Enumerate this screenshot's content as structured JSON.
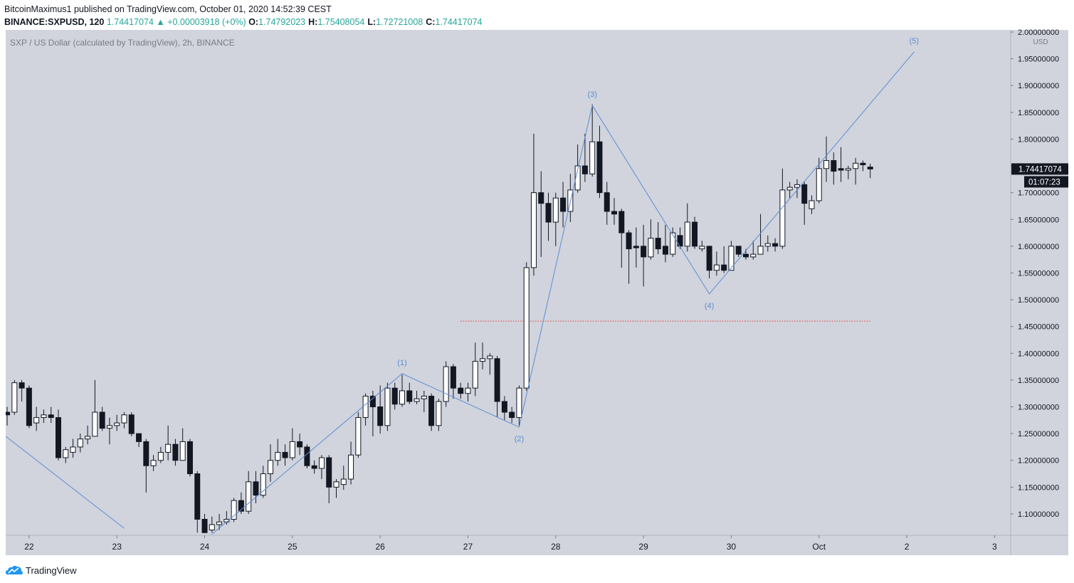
{
  "header": {
    "publisher_line": "BitcoinMaximus1 published on TradingView.com, October 01, 2020 14:52:39 CEST",
    "symbol": "BINANCE:SXPUSD, 120",
    "last": "1.74417074",
    "change": "▲ +0.00003918 (+0%)",
    "ohlc": [
      {
        "label": "O:",
        "value": "1.74792023"
      },
      {
        "label": "H:",
        "value": "1.75408054"
      },
      {
        "label": "L:",
        "value": "1.72721008"
      },
      {
        "label": "C:",
        "value": "1.74417074"
      }
    ]
  },
  "chart_data": {
    "type": "candlestick",
    "title": "SXP / US Dollar (calculated by TradingView), 2h, BINANCE",
    "currency": "USD",
    "background": "#d1d4dc",
    "up_color": "#ffffff",
    "down_color": "#131722",
    "outline_color": "#131722",
    "xlim": [
      -6.4,
      268.4
    ],
    "ylim": [
      1.0627,
      2.004
    ],
    "xticks": [
      {
        "value": 0,
        "label": "22"
      },
      {
        "value": 24,
        "label": "23"
      },
      {
        "value": 48,
        "label": "24"
      },
      {
        "value": 72,
        "label": "25"
      },
      {
        "value": 96,
        "label": "26"
      },
      {
        "value": 120,
        "label": "27"
      },
      {
        "value": 144,
        "label": "28"
      },
      {
        "value": 168,
        "label": "29"
      },
      {
        "value": 192,
        "label": "30"
      },
      {
        "value": 216,
        "label": "Oct"
      },
      {
        "value": 240,
        "label": "2"
      },
      {
        "value": 264,
        "label": "3"
      }
    ],
    "yticks": [
      {
        "value": 1.1,
        "label": "1.10000000"
      },
      {
        "value": 1.15,
        "label": "1.15000000"
      },
      {
        "value": 1.2,
        "label": "1.20000000"
      },
      {
        "value": 1.25,
        "label": "1.25000000"
      },
      {
        "value": 1.3,
        "label": "1.30000000"
      },
      {
        "value": 1.35,
        "label": "1.35000000"
      },
      {
        "value": 1.4,
        "label": "1.40000000"
      },
      {
        "value": 1.45,
        "label": "1.45000000"
      },
      {
        "value": 1.5,
        "label": "1.50000000"
      },
      {
        "value": 1.55,
        "label": "1.55000000"
      },
      {
        "value": 1.6,
        "label": "1.60000000"
      },
      {
        "value": 1.65,
        "label": "1.65000000"
      },
      {
        "value": 1.7,
        "label": "1.70000000"
      },
      {
        "value": 1.75,
        "label": "1.75000000"
      },
      {
        "value": 1.8,
        "label": "1.80000000"
      },
      {
        "value": 1.85,
        "label": "1.85000000"
      },
      {
        "value": 1.9,
        "label": "1.90000000"
      },
      {
        "value": 1.95,
        "label": "1.95000000"
      },
      {
        "value": 2.0,
        "label": "2.00000000"
      }
    ],
    "x": [
      -6,
      -4,
      -2,
      0,
      2,
      4,
      6,
      8,
      10,
      12,
      14,
      16,
      18,
      20,
      22,
      24,
      26,
      28,
      30,
      32,
      34,
      36,
      38,
      40,
      42,
      44,
      46,
      48,
      50,
      52,
      54,
      56,
      58,
      60,
      62,
      64,
      66,
      68,
      70,
      72,
      74,
      76,
      78,
      80,
      82,
      84,
      86,
      88,
      90,
      92,
      94,
      96,
      98,
      100,
      102,
      104,
      106,
      108,
      110,
      112,
      114,
      116,
      118,
      120,
      122,
      124,
      126,
      128,
      130,
      132,
      134,
      136,
      138,
      140,
      142,
      144,
      146,
      148,
      150,
      152,
      154,
      156,
      158,
      160,
      162,
      164,
      166,
      168,
      170,
      172,
      174,
      176,
      178,
      180,
      182,
      184,
      186,
      188,
      190,
      192,
      194,
      196,
      198,
      200,
      202,
      204,
      206,
      208,
      210,
      212,
      214,
      216,
      218,
      220,
      222,
      224,
      226,
      228,
      230
    ],
    "open": [
      1.29,
      1.29,
      1.345,
      1.335,
      1.27,
      1.28,
      1.285,
      1.28,
      1.205,
      1.215,
      1.225,
      1.24,
      1.245,
      1.29,
      1.26,
      1.265,
      1.27,
      1.285,
      1.25,
      1.235,
      1.19,
      1.2,
      1.215,
      1.23,
      1.2,
      1.235,
      1.175,
      1.09,
      1.07,
      1.08,
      1.085,
      1.09,
      1.125,
      1.105,
      1.16,
      1.135,
      1.175,
      1.2,
      1.215,
      1.205,
      1.235,
      1.225,
      1.19,
      1.185,
      1.205,
      1.15,
      1.155,
      1.165,
      1.21,
      1.28,
      1.32,
      1.3,
      1.265,
      1.335,
      1.305,
      1.33,
      1.31,
      1.315,
      1.32,
      1.265,
      1.31,
      1.375,
      1.335,
      1.325,
      1.335,
      1.385,
      1.39,
      1.39,
      1.31,
      1.29,
      1.28,
      1.335,
      1.56,
      1.7,
      1.68,
      1.645,
      1.69,
      1.665,
      1.705,
      1.75,
      1.735,
      1.795,
      1.7,
      1.665,
      1.665,
      1.625,
      1.6,
      1.6,
      1.58,
      1.615,
      1.6,
      1.585,
      1.62,
      1.6,
      1.645,
      1.595,
      1.6,
      1.555,
      1.565,
      1.555,
      1.6,
      1.585,
      1.58,
      1.585,
      1.6,
      1.605,
      1.6,
      1.705,
      1.71,
      1.715,
      1.67,
      1.685,
      1.745,
      1.76,
      1.745,
      1.742,
      1.745,
      1.755,
      1.74792023
    ],
    "high": [
      1.3,
      1.35,
      1.35,
      1.34,
      1.3,
      1.295,
      1.3,
      1.295,
      1.225,
      1.24,
      1.25,
      1.265,
      1.35,
      1.3,
      1.28,
      1.285,
      1.29,
      1.29,
      1.25,
      1.24,
      1.21,
      1.225,
      1.265,
      1.24,
      1.26,
      1.24,
      1.18,
      1.1,
      1.095,
      1.1,
      1.105,
      1.13,
      1.14,
      1.18,
      1.18,
      1.19,
      1.23,
      1.24,
      1.23,
      1.26,
      1.25,
      1.23,
      1.2,
      1.21,
      1.21,
      1.165,
      1.19,
      1.235,
      1.29,
      1.325,
      1.33,
      1.34,
      1.345,
      1.345,
      1.36,
      1.345,
      1.33,
      1.33,
      1.325,
      1.315,
      1.385,
      1.38,
      1.345,
      1.345,
      1.42,
      1.42,
      1.4,
      1.395,
      1.32,
      1.3,
      1.34,
      1.57,
      1.81,
      1.74,
      1.7,
      1.7,
      1.72,
      1.735,
      1.79,
      1.81,
      1.865,
      1.825,
      1.72,
      1.69,
      1.67,
      1.63,
      1.635,
      1.64,
      1.65,
      1.645,
      1.64,
      1.635,
      1.635,
      1.68,
      1.655,
      1.61,
      1.6,
      1.59,
      1.6,
      1.61,
      1.6,
      1.595,
      1.61,
      1.66,
      1.62,
      1.615,
      1.745,
      1.72,
      1.725,
      1.72,
      1.695,
      1.765,
      1.805,
      1.775,
      1.785,
      1.75,
      1.765,
      1.76,
      1.75408054
    ],
    "low": [
      1.265,
      1.285,
      1.31,
      1.26,
      1.255,
      1.27,
      1.27,
      1.2,
      1.195,
      1.205,
      1.215,
      1.23,
      1.245,
      1.255,
      1.23,
      1.255,
      1.26,
      1.245,
      1.225,
      1.14,
      1.18,
      1.195,
      1.2,
      1.19,
      1.2,
      1.17,
      1.065,
      1.065,
      1.065,
      1.07,
      1.08,
      1.085,
      1.1,
      1.1,
      1.12,
      1.13,
      1.16,
      1.19,
      1.19,
      1.2,
      1.21,
      1.185,
      1.175,
      1.165,
      1.12,
      1.13,
      1.145,
      1.155,
      1.205,
      1.265,
      1.245,
      1.25,
      1.255,
      1.295,
      1.3,
      1.305,
      1.305,
      1.29,
      1.255,
      1.255,
      1.3,
      1.315,
      1.315,
      1.31,
      1.32,
      1.37,
      1.36,
      1.28,
      1.275,
      1.27,
      1.265,
      1.33,
      1.545,
      1.58,
      1.61,
      1.6,
      1.635,
      1.645,
      1.7,
      1.72,
      1.73,
      1.69,
      1.64,
      1.64,
      1.56,
      1.53,
      1.56,
      1.525,
      1.575,
      1.585,
      1.57,
      1.58,
      1.595,
      1.59,
      1.595,
      1.59,
      1.54,
      1.545,
      1.55,
      1.555,
      1.58,
      1.575,
      1.575,
      1.585,
      1.59,
      1.59,
      1.595,
      1.69,
      1.69,
      1.64,
      1.66,
      1.68,
      1.72,
      1.715,
      1.72,
      1.725,
      1.715,
      1.74,
      1.72721008
    ],
    "close": [
      1.285,
      1.345,
      1.335,
      1.265,
      1.28,
      1.285,
      1.28,
      1.205,
      1.22,
      1.225,
      1.24,
      1.245,
      1.29,
      1.26,
      1.265,
      1.27,
      1.285,
      1.25,
      1.235,
      1.19,
      1.2,
      1.215,
      1.23,
      1.2,
      1.235,
      1.175,
      1.09,
      1.065,
      1.08,
      1.085,
      1.09,
      1.125,
      1.105,
      1.16,
      1.135,
      1.175,
      1.2,
      1.215,
      1.205,
      1.235,
      1.225,
      1.19,
      1.185,
      1.205,
      1.15,
      1.16,
      1.165,
      1.21,
      1.28,
      1.32,
      1.3,
      1.265,
      1.335,
      1.305,
      1.33,
      1.31,
      1.315,
      1.32,
      1.265,
      1.31,
      1.375,
      1.335,
      1.325,
      1.335,
      1.385,
      1.39,
      1.395,
      1.31,
      1.29,
      1.28,
      1.335,
      1.56,
      1.7,
      1.68,
      1.645,
      1.69,
      1.665,
      1.705,
      1.75,
      1.735,
      1.795,
      1.7,
      1.665,
      1.66,
      1.625,
      1.595,
      1.597,
      1.58,
      1.615,
      1.595,
      1.585,
      1.625,
      1.6,
      1.645,
      1.6,
      1.6,
      1.555,
      1.565,
      1.555,
      1.6,
      1.585,
      1.58,
      1.585,
      1.6,
      1.605,
      1.6,
      1.705,
      1.71,
      1.715,
      1.68,
      1.685,
      1.745,
      1.76,
      1.74,
      1.742,
      1.745,
      1.755,
      1.752,
      1.74417074
    ],
    "last_price": {
      "value": 1.74417074,
      "label": "1.74417074"
    },
    "countdown": "01:07:23",
    "waves": {
      "color": "#5b8dd6",
      "start": {
        "x": 50,
        "y": 1.062
      },
      "points": [
        {
          "label": "(1)",
          "x": 102,
          "y": 1.362,
          "position": "above"
        },
        {
          "label": "(2)",
          "x": 134,
          "y": 1.262,
          "position": "below"
        },
        {
          "label": "(3)",
          "x": 154,
          "y": 1.863,
          "position": "above"
        },
        {
          "label": "(4)",
          "x": 186,
          "y": 1.511,
          "position": "below"
        },
        {
          "label": "(5)",
          "x": 242,
          "y": 1.963,
          "position": "above"
        }
      ]
    },
    "trendline": {
      "color": "#5b8dd6",
      "x": [
        -6.4,
        26
      ],
      "y": [
        1.245,
        1.073
      ]
    },
    "level": {
      "color": "#e53935",
      "value": 1.46,
      "x": [
        118,
        230
      ]
    }
  },
  "footer": {
    "brand": "TradingView"
  }
}
